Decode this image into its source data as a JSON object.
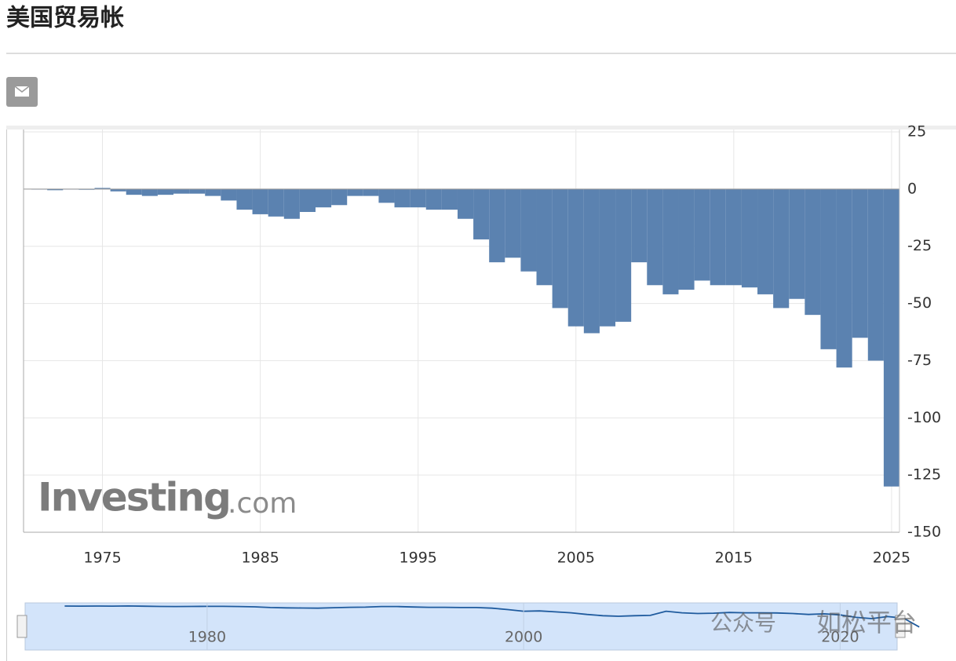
{
  "header": {
    "title": "美国贸易帐"
  },
  "chart_data": {
    "type": "bar",
    "color": "#5b82b0",
    "x": [
      1971,
      1972,
      1973,
      1974,
      1975,
      1976,
      1977,
      1978,
      1979,
      1980,
      1981,
      1982,
      1983,
      1984,
      1985,
      1986,
      1987,
      1988,
      1989,
      1990,
      1991,
      1992,
      1993,
      1994,
      1995,
      1996,
      1997,
      1998,
      1999,
      2000,
      2001,
      2002,
      2003,
      2004,
      2005,
      2006,
      2007,
      2008,
      2009,
      2010,
      2011,
      2012,
      2013,
      2014,
      2015,
      2016,
      2017,
      2018,
      2019,
      2020,
      2021,
      2022,
      2023,
      2024,
      2025
    ],
    "values": [
      -0.2,
      -0.5,
      0,
      -0.3,
      0.5,
      -1,
      -2.5,
      -3,
      -2.5,
      -2,
      -2,
      -3,
      -5,
      -9,
      -11,
      -12,
      -13,
      -10,
      -8,
      -7,
      -3,
      -3,
      -6,
      -8,
      -8,
      -9,
      -9,
      -13,
      -22,
      -32,
      -30,
      -36,
      -42,
      -52,
      -60,
      -63,
      -60,
      -58,
      -32,
      -42,
      -46,
      -44,
      -40,
      -42,
      -42,
      -43,
      -46,
      -52,
      -48,
      -55,
      -70,
      -78,
      -65,
      -75,
      -130
    ],
    "xlim": [
      1970,
      2025.5
    ],
    "xticks": [
      1975,
      1985,
      1995,
      2005,
      2015,
      2025
    ],
    "ylim": [
      -150,
      25
    ],
    "yticks": [
      25,
      0,
      -25,
      -50,
      -75,
      -100,
      -125,
      -150
    ],
    "grid": true,
    "navigator": {
      "xlim": [
        1968.5,
        2023.6
      ],
      "xticks": [
        1980,
        2000,
        2020
      ]
    },
    "watermark": {
      "brand": "Investing",
      "domain": ".com",
      "wechat": "公众号",
      "account": "如松平台"
    }
  }
}
